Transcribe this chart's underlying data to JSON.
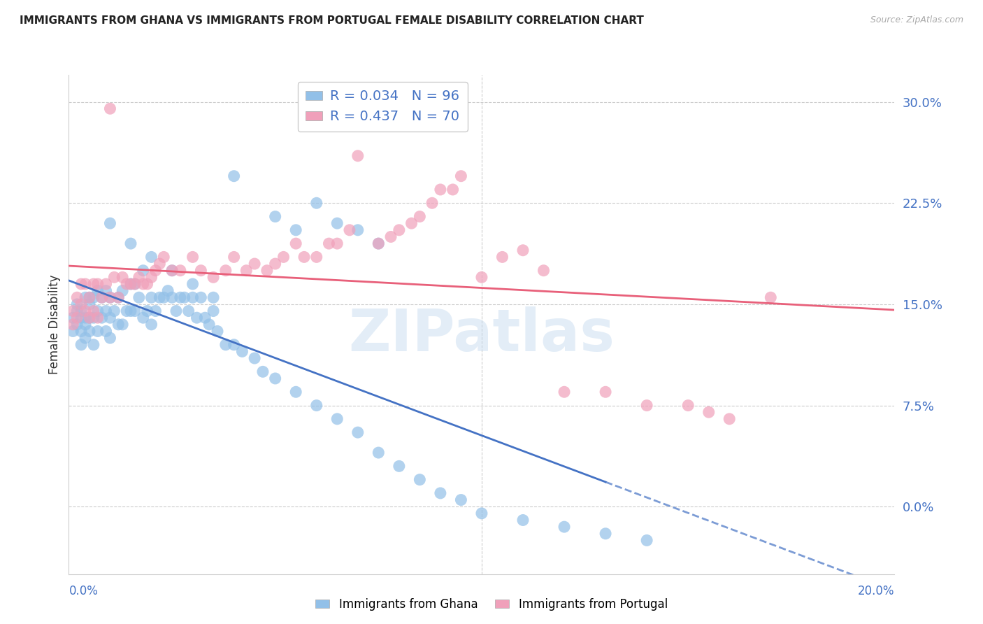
{
  "title": "IMMIGRANTS FROM GHANA VS IMMIGRANTS FROM PORTUGAL FEMALE DISABILITY CORRELATION CHART",
  "source": "Source: ZipAtlas.com",
  "ylabel": "Female Disability",
  "ytick_values": [
    0.0,
    0.075,
    0.15,
    0.225,
    0.3
  ],
  "ytick_labels": [
    "0.0%",
    "7.5%",
    "15.0%",
    "22.5%",
    "30.0%"
  ],
  "xlim": [
    0.0,
    0.2
  ],
  "ylim": [
    -0.05,
    0.32
  ],
  "ghana_color": "#92C0E8",
  "portugal_color": "#F0A0BA",
  "ghana_R": 0.034,
  "ghana_N": 96,
  "portugal_R": 0.437,
  "portugal_N": 70,
  "ghana_line_color": "#4472C4",
  "portugal_line_color": "#E8607A",
  "watermark": "ZIPatlas",
  "axis_label_color": "#4472C4",
  "ghana_scatter_x": [
    0.001,
    0.001,
    0.002,
    0.002,
    0.002,
    0.003,
    0.003,
    0.003,
    0.003,
    0.004,
    0.004,
    0.004,
    0.004,
    0.005,
    0.005,
    0.005,
    0.005,
    0.006,
    0.006,
    0.006,
    0.007,
    0.007,
    0.007,
    0.008,
    0.008,
    0.009,
    0.009,
    0.009,
    0.01,
    0.01,
    0.01,
    0.011,
    0.012,
    0.012,
    0.013,
    0.013,
    0.014,
    0.015,
    0.015,
    0.016,
    0.016,
    0.017,
    0.018,
    0.018,
    0.019,
    0.02,
    0.02,
    0.021,
    0.022,
    0.023,
    0.024,
    0.025,
    0.026,
    0.027,
    0.028,
    0.029,
    0.03,
    0.031,
    0.032,
    0.033,
    0.034,
    0.035,
    0.036,
    0.038,
    0.04,
    0.042,
    0.045,
    0.047,
    0.05,
    0.055,
    0.06,
    0.065,
    0.07,
    0.075,
    0.08,
    0.085,
    0.09,
    0.095,
    0.1,
    0.11,
    0.12,
    0.13,
    0.14,
    0.04,
    0.05,
    0.055,
    0.06,
    0.065,
    0.07,
    0.075,
    0.01,
    0.015,
    0.02,
    0.025,
    0.03,
    0.035
  ],
  "ghana_scatter_y": [
    0.13,
    0.14,
    0.135,
    0.145,
    0.15,
    0.12,
    0.13,
    0.14,
    0.145,
    0.125,
    0.135,
    0.14,
    0.155,
    0.13,
    0.14,
    0.15,
    0.155,
    0.12,
    0.14,
    0.155,
    0.13,
    0.145,
    0.16,
    0.14,
    0.155,
    0.13,
    0.145,
    0.16,
    0.125,
    0.14,
    0.155,
    0.145,
    0.135,
    0.155,
    0.135,
    0.16,
    0.145,
    0.145,
    0.165,
    0.145,
    0.165,
    0.155,
    0.14,
    0.175,
    0.145,
    0.135,
    0.155,
    0.145,
    0.155,
    0.155,
    0.16,
    0.155,
    0.145,
    0.155,
    0.155,
    0.145,
    0.155,
    0.14,
    0.155,
    0.14,
    0.135,
    0.145,
    0.13,
    0.12,
    0.12,
    0.115,
    0.11,
    0.1,
    0.095,
    0.085,
    0.075,
    0.065,
    0.055,
    0.04,
    0.03,
    0.02,
    0.01,
    0.005,
    -0.005,
    -0.01,
    -0.015,
    -0.02,
    -0.025,
    0.245,
    0.215,
    0.205,
    0.225,
    0.21,
    0.205,
    0.195,
    0.21,
    0.195,
    0.185,
    0.175,
    0.165,
    0.155
  ],
  "portugal_scatter_x": [
    0.001,
    0.001,
    0.002,
    0.002,
    0.003,
    0.003,
    0.004,
    0.004,
    0.005,
    0.005,
    0.006,
    0.006,
    0.007,
    0.007,
    0.008,
    0.009,
    0.01,
    0.01,
    0.011,
    0.012,
    0.013,
    0.014,
    0.015,
    0.016,
    0.017,
    0.018,
    0.019,
    0.02,
    0.021,
    0.022,
    0.023,
    0.025,
    0.027,
    0.03,
    0.032,
    0.035,
    0.038,
    0.04,
    0.043,
    0.045,
    0.048,
    0.05,
    0.052,
    0.055,
    0.057,
    0.06,
    0.063,
    0.065,
    0.068,
    0.07,
    0.075,
    0.078,
    0.08,
    0.083,
    0.085,
    0.088,
    0.09,
    0.093,
    0.095,
    0.1,
    0.105,
    0.11,
    0.115,
    0.12,
    0.13,
    0.14,
    0.15,
    0.155,
    0.16,
    0.17
  ],
  "portugal_scatter_y": [
    0.135,
    0.145,
    0.14,
    0.155,
    0.15,
    0.165,
    0.145,
    0.165,
    0.14,
    0.155,
    0.145,
    0.165,
    0.14,
    0.165,
    0.155,
    0.165,
    0.155,
    0.295,
    0.17,
    0.155,
    0.17,
    0.165,
    0.165,
    0.165,
    0.17,
    0.165,
    0.165,
    0.17,
    0.175,
    0.18,
    0.185,
    0.175,
    0.175,
    0.185,
    0.175,
    0.17,
    0.175,
    0.185,
    0.175,
    0.18,
    0.175,
    0.18,
    0.185,
    0.195,
    0.185,
    0.185,
    0.195,
    0.195,
    0.205,
    0.26,
    0.195,
    0.2,
    0.205,
    0.21,
    0.215,
    0.225,
    0.235,
    0.235,
    0.245,
    0.17,
    0.185,
    0.19,
    0.175,
    0.085,
    0.085,
    0.075,
    0.075,
    0.07,
    0.065,
    0.155
  ]
}
